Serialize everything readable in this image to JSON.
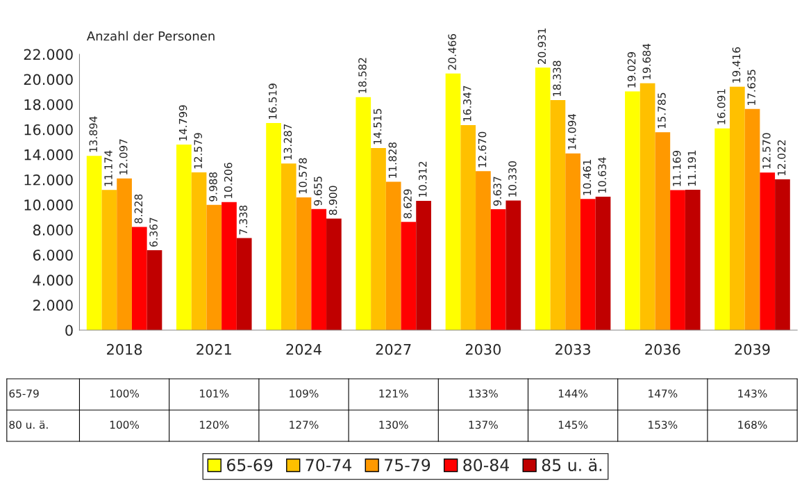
{
  "chart_data": {
    "type": "bar",
    "ylabel": "Anzahl der Personen",
    "categories": [
      "2018",
      "2021",
      "2024",
      "2027",
      "2030",
      "2033",
      "2036",
      "2039"
    ],
    "series": [
      {
        "name": "65-69",
        "color": "#ffff00",
        "values": [
          13894,
          14799,
          16519,
          18582,
          20466,
          20931,
          19029,
          16091
        ],
        "value_labels": [
          "13.894",
          "14.799",
          "16.519",
          "18.582",
          "20.466",
          "20.931",
          "19.029",
          "16.091"
        ]
      },
      {
        "name": "70-74",
        "color": "#ffc000",
        "values": [
          11174,
          12579,
          13287,
          14515,
          16347,
          18338,
          19684,
          19416
        ],
        "value_labels": [
          "11.174",
          "12.579",
          "13.287",
          "14.515",
          "16.347",
          "18.338",
          "19.684",
          "19.416"
        ]
      },
      {
        "name": "75-79",
        "color": "#ff9900",
        "values": [
          12097,
          9988,
          10578,
          11828,
          12670,
          14094,
          15785,
          17635
        ],
        "value_labels": [
          "12.097",
          "9.988",
          "10.578",
          "11.828",
          "12.670",
          "14.094",
          "15.785",
          "17.635"
        ]
      },
      {
        "name": "80-84",
        "color": "#ff0000",
        "values": [
          8228,
          10206,
          9655,
          8629,
          9637,
          10461,
          11169,
          12570
        ],
        "value_labels": [
          "8.228",
          "10.206",
          "9.655",
          "8.629",
          "9.637",
          "10.461",
          "11.169",
          "12.570"
        ]
      },
      {
        "name": "85 u. ä.",
        "color": "#c00000",
        "values": [
          6367,
          7338,
          8900,
          10312,
          10330,
          10634,
          11191,
          12022
        ],
        "value_labels": [
          "6.367",
          "7.338",
          "8.900",
          "10.312",
          "10.330",
          "10.634",
          "11.191",
          "12.022"
        ]
      }
    ],
    "ylim": [
      0,
      22000
    ],
    "yticks": [
      {
        "value": 0,
        "label": "0"
      },
      {
        "value": 2000,
        "label": "2.000"
      },
      {
        "value": 4000,
        "label": "4.000"
      },
      {
        "value": 6000,
        "label": "6.000"
      },
      {
        "value": 8000,
        "label": "8.000"
      },
      {
        "value": 10000,
        "label": "10.000"
      },
      {
        "value": 12000,
        "label": "12.000"
      },
      {
        "value": 14000,
        "label": "14.000"
      },
      {
        "value": 16000,
        "label": "16.000"
      },
      {
        "value": 18000,
        "label": "18.000"
      },
      {
        "value": 20000,
        "label": "20.000"
      },
      {
        "value": 22000,
        "label": "22.000"
      }
    ],
    "annotations": [
      "65-79",
      "100%",
      "101%",
      "109%",
      "121%",
      "133%",
      "144%",
      "147%",
      "143%",
      "80 u. ä.",
      "100%",
      "120%",
      "127%",
      "130%",
      "137%",
      "145%",
      "153%",
      "168%"
    ],
    "grid": false,
    "legend": "bottom"
  }
}
